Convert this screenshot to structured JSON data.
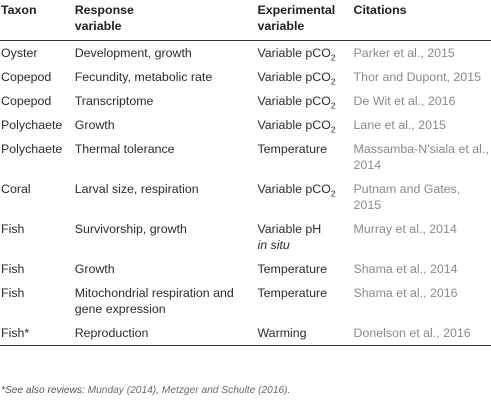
{
  "headers": {
    "taxon": "Taxon",
    "response_line1": "Response",
    "response_line2": "variable",
    "experimental_line1": "Experimental",
    "experimental_line2": "variable",
    "citations": "Citations"
  },
  "rows": [
    {
      "taxon": "Oyster",
      "response": "Development, growth",
      "exp_main": "Variable pCO",
      "exp_sub": "2",
      "exp_extra": "",
      "citation": "Parker et al., 2015"
    },
    {
      "taxon": "Copepod",
      "response": "Fecundity, metabolic rate",
      "exp_main": "Variable pCO",
      "exp_sub": "2",
      "exp_extra": "",
      "citation": "Thor and Dupont, 2015"
    },
    {
      "taxon": "Copepod",
      "response": "Transcriptome",
      "exp_main": "Variable pCO",
      "exp_sub": "2",
      "exp_extra": "",
      "citation": "De Wit et al., 2016"
    },
    {
      "taxon": "Polychaete",
      "response": "Growth",
      "exp_main": "Variable pCO",
      "exp_sub": "2",
      "exp_extra": "",
      "citation": "Lane et al., 2015"
    },
    {
      "taxon": "Polychaete",
      "response": "Thermal tolerance",
      "exp_main": "Temperature",
      "exp_sub": "",
      "exp_extra": "",
      "citation": "Massamba-N'siala et al., 2014"
    },
    {
      "taxon": "Coral",
      "response": "Larval size, respiration",
      "exp_main": "Variable pCO",
      "exp_sub": "2",
      "exp_extra": "",
      "citation": "Putnam and Gates, 2015"
    },
    {
      "taxon": "Fish",
      "response": "Survivorship, growth",
      "exp_main": "Variable pH",
      "exp_sub": "",
      "exp_extra": "in situ",
      "citation": "Murray et al., 2014"
    },
    {
      "taxon": "Fish",
      "response": "Growth",
      "exp_main": "Temperature",
      "exp_sub": "",
      "exp_extra": "",
      "citation": "Shama et al., 2014"
    },
    {
      "taxon": "Fish",
      "response": "Mitochondrial respiration and gene expression",
      "exp_main": "Temperature",
      "exp_sub": "",
      "exp_extra": "",
      "citation": "Shama et al., 2016"
    },
    {
      "taxon": "Fish*",
      "response": "Reproduction",
      "exp_main": "Warming",
      "exp_sub": "",
      "exp_extra": "",
      "citation": "Donelson et al., 2016"
    }
  ],
  "footnote": {
    "prefix": "*See also reviews: ",
    "ref1": "Munday (2014)",
    "sep": ", ",
    "ref2": "Metzger and Schulte (2016)",
    "suffix": "."
  }
}
